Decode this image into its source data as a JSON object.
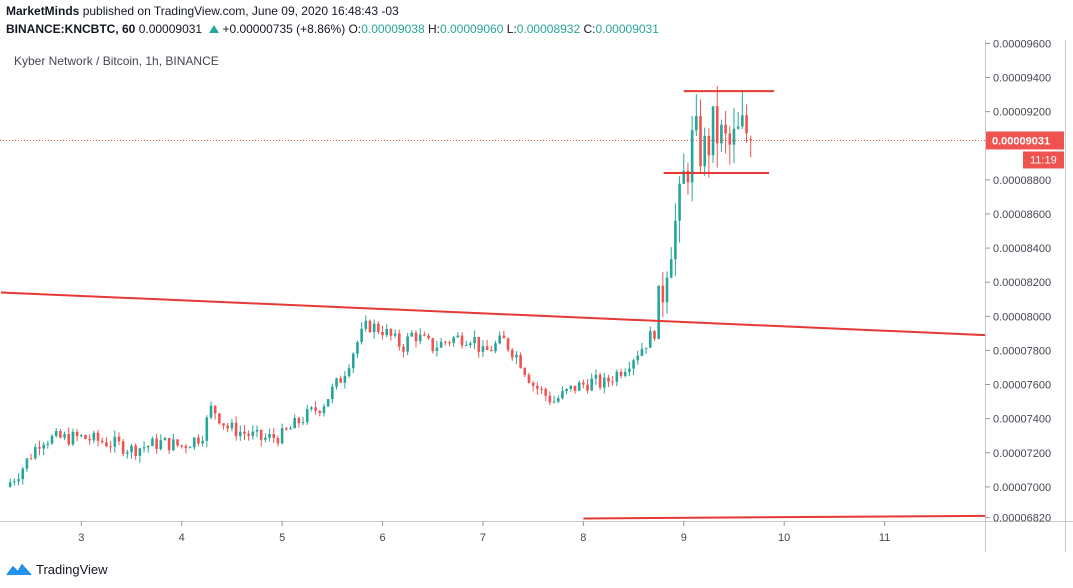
{
  "header": {
    "author": "MarketMinds",
    "published_text": "published on TradingView.com, June 09, 2020 16:48:43 -03",
    "symbol": "BINANCE:KNCBTC, 60",
    "last": "0.00009031",
    "change": "+0.00000735 (+8.86%)",
    "o_label": "O:",
    "o_value": "0.00009038",
    "h_label": "H:",
    "h_value": "0.00009060",
    "l_label": "L:",
    "l_value": "0.00008932",
    "c_label": "C:",
    "c_value": "0.00009031"
  },
  "legend": {
    "title": "Kyber Network / Bitcoin, 1h, BINANCE"
  },
  "price_tag": {
    "price": "0.00009031",
    "countdown": "11:19"
  },
  "footer": {
    "brand": "TradingView"
  },
  "colors": {
    "up": "#26a69a",
    "down": "#ef5350",
    "drawing": "#e53935",
    "price_line": "#ef5350"
  },
  "chart_data": {
    "type": "candlestick",
    "title": "Kyber Network / Bitcoin, 1h, BINANCE",
    "x_ticks": [
      "3",
      "4",
      "5",
      "6",
      "7",
      "8",
      "9",
      "10",
      "11"
    ],
    "x_range": [
      2.25,
      12.0
    ],
    "y_ticks": [
      "0.00009600",
      "0.00009400",
      "0.00009200",
      "0.00008800",
      "0.00008600",
      "0.00008400",
      "0.00008200",
      "0.00008000",
      "0.00007800",
      "0.00007600",
      "0.00007400",
      "0.00007200",
      "0.00007000",
      "0.00006820"
    ],
    "y_range": [
      6.8e-05,
      9.62e-05
    ],
    "last_price": 9.031e-05,
    "waypoints": [
      [
        2.25,
        7e-05
      ],
      [
        2.4,
        7.1e-05
      ],
      [
        2.6,
        7.28e-05
      ],
      [
        3.0,
        7.29e-05
      ],
      [
        3.35,
        7.25e-05
      ],
      [
        3.5,
        7.22e-05
      ],
      [
        3.8,
        7.26e-05
      ],
      [
        4.0,
        7.24e-05
      ],
      [
        4.2,
        7.3e-05
      ],
      [
        4.3,
        7.47e-05
      ],
      [
        4.45,
        7.35e-05
      ],
      [
        4.6,
        7.32e-05
      ],
      [
        4.8,
        7.28e-05
      ],
      [
        5.0,
        7.3e-05
      ],
      [
        5.2,
        7.4e-05
      ],
      [
        5.4,
        7.48e-05
      ],
      [
        5.6,
        7.65e-05
      ],
      [
        5.75,
        7.85e-05
      ],
      [
        5.85,
        7.95e-05
      ],
      [
        6.0,
        7.92e-05
      ],
      [
        6.2,
        7.82e-05
      ],
      [
        6.3,
        7.9e-05
      ],
      [
        6.5,
        7.82e-05
      ],
      [
        6.7,
        7.87e-05
      ],
      [
        6.9,
        7.88e-05
      ],
      [
        7.0,
        7.78e-05
      ],
      [
        7.2,
        7.86e-05
      ],
      [
        7.35,
        7.76e-05
      ],
      [
        7.5,
        7.6e-05
      ],
      [
        7.7,
        7.5e-05
      ],
      [
        7.9,
        7.58e-05
      ],
      [
        8.1,
        7.62e-05
      ],
      [
        8.2,
        7.6e-05
      ],
      [
        8.4,
        7.7e-05
      ],
      [
        8.6,
        7.83e-05
      ],
      [
        8.72,
        7.92e-05
      ],
      [
        8.78,
        8.12e-05
      ],
      [
        8.85,
        8.42e-05
      ],
      [
        8.95,
        8.6e-05
      ],
      [
        9.0,
        8.8e-05
      ],
      [
        9.1,
        9.05e-05
      ],
      [
        9.2,
        8.95e-05
      ],
      [
        9.3,
        9.1e-05
      ],
      [
        9.45,
        8.98e-05
      ],
      [
        9.6,
        9.1e-05
      ],
      [
        9.7,
        9.03e-05
      ]
    ],
    "drawings": [
      {
        "type": "trendline",
        "name": "descending-trendline",
        "from": [
          2.2,
          8.14e-05
        ],
        "to": [
          12.0,
          7.89e-05
        ]
      },
      {
        "type": "trendline",
        "name": "lower-trendline",
        "from": [
          8.0,
          6.815e-05
        ],
        "to": [
          12.0,
          6.83e-05
        ]
      },
      {
        "type": "horizontal",
        "name": "range-top-line",
        "from": [
          9.0,
          9.32e-05
        ],
        "to": [
          9.9,
          9.32e-05
        ]
      },
      {
        "type": "horizontal",
        "name": "range-bottom-line",
        "from": [
          8.8,
          8.84e-05
        ],
        "to": [
          9.85,
          8.84e-05
        ]
      }
    ]
  }
}
